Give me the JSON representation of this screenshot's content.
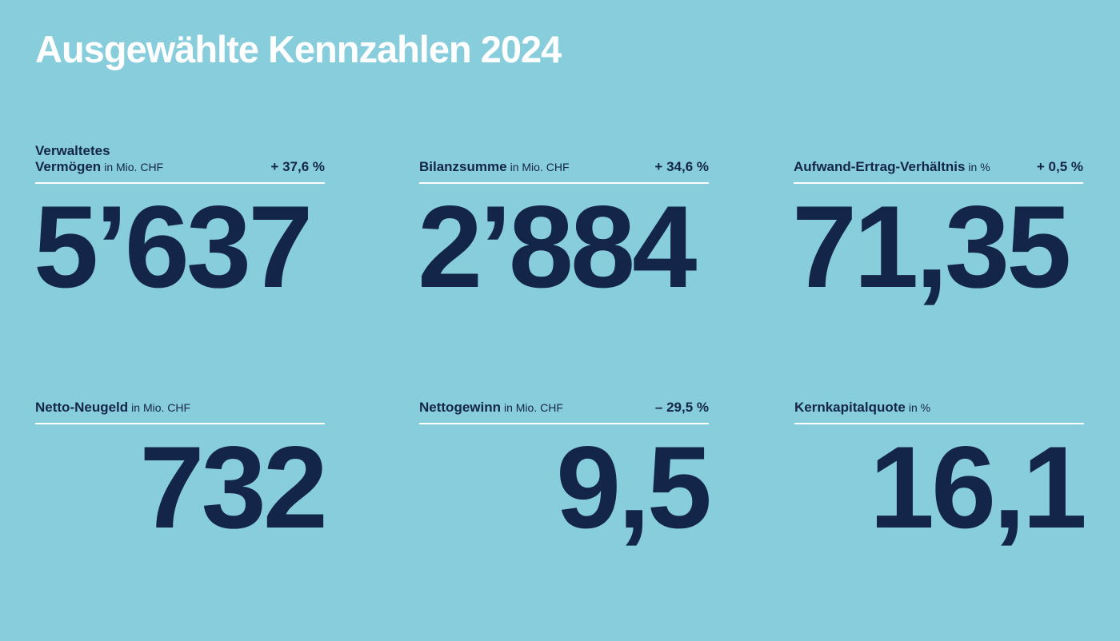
{
  "title": "Ausgewählte Kennzahlen 2024",
  "kpis": [
    {
      "label_line1": "Verwaltetes",
      "label_line2": "Vermögen",
      "unit": "in Mio. CHF",
      "change": "+ 37,6 %",
      "value": "5’637"
    },
    {
      "label": "Bilanzsumme",
      "unit": "in Mio. CHF",
      "change": "+ 34,6 %",
      "value": "2’884"
    },
    {
      "label": "Aufwand-Ertrag-Verhältnis",
      "unit": "in %",
      "change": "+ 0,5 %",
      "value": "71,35"
    },
    {
      "label": "Netto-Neugeld",
      "unit": "in Mio. CHF",
      "change": "",
      "value": "732"
    },
    {
      "label": "Nettogewinn",
      "unit": "in Mio. CHF",
      "change": "– 29,5 %",
      "value": "9,5"
    },
    {
      "label": "Kernkapitalquote",
      "unit": "in %",
      "change": "",
      "value": "16,1"
    }
  ]
}
